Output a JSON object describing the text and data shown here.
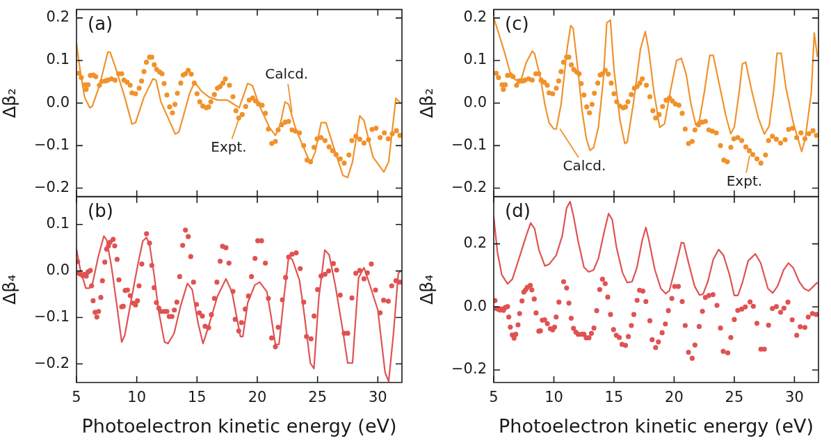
{
  "chart_data": [
    {
      "type": "line",
      "ylabel": "Δβ₂",
      "xlim": [
        5,
        32
      ],
      "ylim": [
        -0.22,
        0.22
      ],
      "xticks": [
        5,
        10,
        15,
        20,
        25,
        30
      ],
      "yticks": [
        {
          "value": -0.2,
          "label": "−0.2"
        },
        {
          "value": -0.1,
          "label": "−0.1"
        },
        {
          "value": 0,
          "label": "0.0"
        },
        {
          "value": 0.1,
          "label": "0.1"
        },
        {
          "value": 0.2,
          "label": "0.2"
        }
      ],
      "tick_labels": "y",
      "annotations": [
        "(a)",
        {
          "text": "Calcd.",
          "x": 22.9,
          "y": -0.027
        },
        {
          "text": "Expt.",
          "x": 18.5,
          "y": -0.035
        }
      ],
      "series": [
        {
          "type": "line",
          "color": "#f0922b",
          "marker": "none",
          "x": [
            5.0,
            5.3,
            5.67,
            6.1,
            6.3,
            6.9,
            7.6,
            7.8,
            8.3,
            9.0,
            9.6,
            9.9,
            10.6,
            11.35,
            11.6,
            12.0,
            13.2,
            13.5,
            14.4,
            14.8,
            15.4,
            16.0,
            16.7,
            17.5,
            17.9,
            18.5,
            19.2,
            19.6,
            20.2,
            21.0,
            21.5,
            21.9,
            22.3,
            22.6,
            23.2,
            23.85,
            24.4,
            24.8,
            25.3,
            25.7,
            26.35,
            27.1,
            27.5,
            27.9,
            28.5,
            28.85,
            29.6,
            30.5,
            30.9,
            31.5,
            31.9
          ],
          "values": [
            0.14,
            0.078,
            0.014,
            -0.011,
            -0.008,
            0.04,
            0.12,
            0.119,
            0.078,
            0.014,
            -0.049,
            -0.046,
            0.014,
            0.057,
            0.054,
            0.003,
            -0.073,
            -0.068,
            0.024,
            0.049,
            0.027,
            0.014,
            0.007,
            0.007,
            0,
            -0.011,
            0.046,
            0.041,
            -0.008,
            -0.057,
            -0.076,
            -0.051,
            0.003,
            -0.003,
            -0.062,
            -0.105,
            -0.141,
            -0.116,
            -0.046,
            -0.046,
            -0.105,
            -0.17,
            -0.175,
            -0.138,
            -0.03,
            -0.041,
            -0.127,
            -0.162,
            -0.138,
            0.011,
            0
          ]
        },
        {
          "type": "scatter",
          "color": "#f0922b",
          "marker": "circle",
          "x": [
            5.2,
            5.4,
            5.7,
            5.8,
            5.96,
            6.15,
            6.4,
            6.6,
            6.9,
            7.1,
            7.4,
            7.6,
            7.9,
            8.2,
            8.5,
            8.75,
            8.94,
            9.2,
            9.45,
            9.6,
            9.9,
            10.2,
            10.4,
            10.6,
            10.8,
            11.06,
            11.25,
            11.45,
            11.65,
            11.9,
            12.1,
            12.27,
            12.5,
            12.73,
            12.96,
            13.17,
            13.37,
            13.65,
            13.85,
            14.04,
            14.27,
            14.52,
            14.77,
            15.0,
            15.23,
            15.48,
            15.77,
            15.96,
            16.15,
            16.44,
            16.69,
            16.92,
            17.15,
            17.35,
            17.69,
            17.98,
            18.23,
            18.46,
            18.75,
            19.04,
            19.33,
            19.62,
            19.85,
            20.1,
            20.4,
            20.67,
            20.92,
            21.2,
            21.5,
            21.73,
            22.02,
            22.31,
            22.6,
            22.88,
            23.17,
            23.5,
            23.85,
            24.13,
            24.42,
            24.71,
            24.96,
            25.29,
            25.62,
            25.96,
            26.25,
            26.54,
            26.88,
            27.21,
            27.6,
            27.85,
            28.17,
            28.5,
            28.85,
            29.23,
            29.52,
            29.85,
            30.19,
            30.54,
            30.87,
            31.2,
            31.54,
            31.83
          ],
          "values": [
            0.07,
            0.06,
            0.043,
            0.032,
            0.043,
            0.065,
            0.066,
            0.062,
            0.042,
            0.051,
            0.052,
            0.054,
            0.057,
            0.054,
            0.069,
            0.069,
            0.054,
            0.049,
            0.042,
            0.024,
            0.022,
            0.035,
            0.052,
            0.074,
            0.096,
            0.108,
            0.108,
            0.09,
            0.079,
            0.073,
            0.069,
            0.046,
            0.019,
            -0.009,
            -0.023,
            -0.003,
            0.023,
            0.047,
            0.066,
            0.069,
            0.077,
            0.068,
            0.047,
            0.022,
            0.003,
            -0.007,
            -0.011,
            -0.009,
            0.003,
            0.02,
            0.035,
            0.039,
            0.047,
            0.057,
            0.042,
            0.015,
            -0.018,
            -0.035,
            -0.027,
            -0.008,
            0.007,
            0.012,
            0.005,
            -0.002,
            -0.005,
            -0.024,
            -0.061,
            -0.095,
            -0.09,
            -0.063,
            -0.051,
            -0.045,
            -0.043,
            -0.063,
            -0.066,
            -0.07,
            -0.1,
            -0.134,
            -0.138,
            -0.104,
            -0.084,
            -0.081,
            -0.088,
            -0.103,
            -0.112,
            -0.121,
            -0.131,
            -0.141,
            -0.122,
            -0.088,
            -0.078,
            -0.085,
            -0.094,
            -0.086,
            -0.062,
            -0.059,
            -0.081,
            -0.07,
            -0.084,
            -0.072,
            -0.065,
            -0.076
          ]
        }
      ]
    },
    {
      "type": "line",
      "xlabel": "Photoelectron kinetic energy (eV)",
      "ylabel": "Δβ₄",
      "xlim": [
        5,
        32
      ],
      "ylim": [
        -0.24,
        0.16
      ],
      "xticks": [
        5,
        10,
        15,
        20,
        25,
        30
      ],
      "yticks": [
        {
          "value": -0.2,
          "label": "−0.2"
        },
        {
          "value": -0.1,
          "label": "−0.1"
        },
        {
          "value": 0,
          "label": "0.0"
        },
        {
          "value": 0.1,
          "label": "0.1"
        }
      ],
      "annotations": [
        "(b)"
      ],
      "series": [
        {
          "type": "line",
          "color": "#e05252",
          "marker": "none",
          "x": [
            5.0,
            5.3,
            5.77,
            6.06,
            6.35,
            6.8,
            7.27,
            7.5,
            7.9,
            8.35,
            8.75,
            9.0,
            9.6,
            10.1,
            10.5,
            10.8,
            11.05,
            11.45,
            11.8,
            12.3,
            12.6,
            13.1,
            13.65,
            14.2,
            14.6,
            15.1,
            15.5,
            15.96,
            16.7,
            17.4,
            17.9,
            18.4,
            18.6,
            18.8,
            19.2,
            19.8,
            20.2,
            20.8,
            21.15,
            21.5,
            21.8,
            22.2,
            22.6,
            22.9,
            23.5,
            23.85,
            24.4,
            24.7,
            25.1,
            25.6,
            25.96,
            26.5,
            27.1,
            27.5,
            27.9,
            28.4,
            28.85,
            29.4,
            30.0,
            30.6,
            30.9,
            31.3,
            31.7,
            31.9
          ],
          "values": [
            0.047,
            0.005,
            -0.037,
            -0.037,
            -0.025,
            0.03,
            0.075,
            0.067,
            0.01,
            -0.074,
            -0.153,
            -0.139,
            -0.054,
            0.015,
            0.064,
            0.072,
            0.059,
            -0.01,
            -0.084,
            -0.153,
            -0.156,
            -0.134,
            -0.074,
            -0.027,
            -0.04,
            -0.114,
            -0.156,
            -0.119,
            -0.054,
            -0.017,
            -0.045,
            -0.114,
            -0.141,
            -0.141,
            -0.069,
            -0.03,
            -0.024,
            -0.045,
            -0.099,
            -0.158,
            -0.158,
            -0.059,
            0.03,
            0.025,
            -0.02,
            -0.084,
            -0.198,
            -0.21,
            -0.059,
            0.045,
            0.035,
            -0.035,
            -0.129,
            -0.198,
            -0.198,
            -0.015,
            0.007,
            -0.035,
            -0.084,
            -0.218,
            -0.238,
            -0.134,
            -0.005,
            0
          ]
        },
        {
          "type": "scatter",
          "color": "#e05252",
          "marker": "circle",
          "x": [
            5.1,
            5.2,
            5.35,
            5.52,
            5.67,
            5.81,
            5.96,
            6.15,
            6.25,
            6.38,
            6.54,
            6.69,
            6.83,
            7.02,
            7.15,
            7.35,
            7.5,
            7.65,
            7.79,
            8.04,
            8.17,
            8.37,
            8.52,
            8.75,
            8.88,
            9.04,
            9.23,
            9.46,
            9.71,
            9.9,
            10.06,
            10.19,
            10.42,
            10.81,
            11.06,
            11.25,
            11.44,
            11.63,
            11.83,
            12.02,
            12.31,
            12.5,
            12.69,
            12.92,
            13.12,
            13.33,
            13.56,
            13.81,
            14.04,
            14.27,
            14.48,
            14.71,
            14.96,
            15.19,
            15.44,
            15.67,
            15.96,
            16.19,
            16.44,
            16.65,
            16.92,
            17.12,
            17.4,
            17.65,
            17.98,
            18.17,
            18.46,
            18.69,
            19.0,
            19.27,
            19.52,
            19.81,
            20.04,
            20.35,
            20.67,
            20.92,
            21.19,
            21.5,
            21.73,
            22.08,
            22.35,
            22.6,
            22.88,
            23.23,
            23.56,
            23.85,
            24.08,
            24.46,
            24.71,
            25.0,
            25.29,
            25.62,
            25.92,
            26.31,
            26.58,
            26.88,
            27.21,
            27.5,
            27.85,
            28.17,
            28.5,
            28.85,
            29.13,
            29.46,
            29.81,
            30.19,
            30.48,
            30.87,
            31.15,
            31.5,
            31.83
          ],
          "values": [
            0.02,
            -0.005,
            -0.007,
            -0.01,
            -0.007,
            -0.011,
            -0.002,
            0.001,
            -0.032,
            -0.064,
            -0.089,
            -0.099,
            -0.087,
            -0.057,
            -0.021,
            0.019,
            0.047,
            0.054,
            0.062,
            0.068,
            0.054,
            0.025,
            -0.019,
            -0.077,
            -0.076,
            -0.042,
            -0.041,
            -0.053,
            -0.069,
            -0.073,
            -0.064,
            -0.032,
            0.015,
            0.08,
            0.06,
            0.012,
            -0.036,
            -0.068,
            -0.08,
            -0.087,
            -0.087,
            -0.087,
            -0.098,
            -0.098,
            -0.084,
            -0.067,
            -0.012,
            0.055,
            0.088,
            0.074,
            0.031,
            -0.024,
            -0.072,
            -0.09,
            -0.097,
            -0.119,
            -0.122,
            -0.094,
            -0.059,
            -0.024,
            0.021,
            0.053,
            0.05,
            0.017,
            -0.044,
            -0.104,
            -0.129,
            -0.111,
            -0.082,
            -0.054,
            -0.012,
            0.027,
            0.065,
            0.065,
            0.017,
            -0.059,
            -0.144,
            -0.163,
            -0.121,
            -0.062,
            -0.014,
            0.03,
            0.036,
            0.039,
            0.005,
            -0.067,
            -0.141,
            -0.146,
            -0.097,
            -0.04,
            -0.011,
            -0.007,
            0,
            0.016,
            0.002,
            -0.052,
            -0.134,
            -0.134,
            -0.058,
            -0.005,
            0.001,
            -0.017,
            -0.004,
            0.015,
            -0.041,
            -0.09,
            -0.063,
            -0.065,
            -0.032,
            -0.021,
            -0.024
          ]
        }
      ]
    },
    {
      "type": "line",
      "ylabel": "Δβ₂",
      "xlim": [
        5,
        32
      ],
      "ylim": [
        -0.22,
        0.22
      ],
      "xticks": [
        5,
        10,
        15,
        20,
        25,
        30
      ],
      "yticks": [
        {
          "value": -0.2,
          "label": "−0.2"
        },
        {
          "value": -0.1,
          "label": "−0.1"
        },
        {
          "value": 0,
          "label": "0.0"
        },
        {
          "value": 0.1,
          "label": "0.1"
        },
        {
          "value": 0.2,
          "label": "0.2"
        }
      ],
      "tick_labels": "y",
      "annotations": [
        "(c)",
        {
          "text": "Calcd.",
          "x": 10.4,
          "y": -0.056
        },
        {
          "text": "Expt.",
          "x": 26.3,
          "y": -0.12
        }
      ],
      "series": [
        {
          "type": "line",
          "color": "#f0922b",
          "marker": "none",
          "x": [
            5.0,
            5.4,
            5.87,
            6.35,
            6.8,
            7.3,
            7.7,
            8.2,
            8.4,
            8.9,
            9.25,
            9.6,
            10.0,
            10.2,
            10.6,
            11.1,
            11.4,
            11.6,
            12.0,
            12.35,
            12.7,
            13.0,
            13.3,
            13.7,
            14.1,
            14.4,
            14.7,
            15.0,
            15.5,
            15.9,
            16.1,
            16.6,
            17.2,
            17.6,
            17.9,
            18.3,
            18.8,
            19.2,
            19.7,
            20.2,
            20.6,
            21.0,
            21.4,
            21.8,
            22.1,
            22.5,
            22.96,
            23.25,
            23.7,
            24.3,
            24.7,
            25.0,
            25.4,
            25.67,
            25.95,
            26.4,
            27.0,
            27.5,
            27.9,
            28.3,
            28.55,
            28.9,
            29.3,
            29.9,
            30.3,
            30.6,
            30.9,
            31.4,
            31.65,
            31.9
          ],
          "values": [
            0.2,
            0.165,
            0.122,
            0.073,
            0.054,
            0.057,
            0.095,
            0.122,
            0.116,
            0.057,
            -0.003,
            -0.046,
            -0.061,
            -0.061,
            -0.003,
            0.127,
            0.182,
            0.176,
            0.078,
            -0.019,
            -0.084,
            -0.111,
            -0.105,
            -0.057,
            0.051,
            0.189,
            0.195,
            0.078,
            -0.041,
            -0.095,
            -0.092,
            -0.003,
            0.127,
            0.168,
            0.122,
            0.03,
            -0.057,
            -0.049,
            0.03,
            0.1,
            0.105,
            0.068,
            -0.003,
            -0.051,
            -0.041,
            0.024,
            0.112,
            0.112,
            0.051,
            -0.03,
            -0.072,
            -0.057,
            0.024,
            0.092,
            0.096,
            0.035,
            -0.035,
            -0.073,
            -0.054,
            0.035,
            0.117,
            0.117,
            0.035,
            -0.046,
            -0.084,
            -0.114,
            -0.084,
            0.024,
            0.165,
            0.11
          ]
        },
        {
          "type": "scatter",
          "color": "#f0922b",
          "marker": "circle",
          "x": [
            5.2,
            5.4,
            5.7,
            5.8,
            5.96,
            6.15,
            6.4,
            6.6,
            6.9,
            7.1,
            7.4,
            7.6,
            7.9,
            8.2,
            8.5,
            8.75,
            8.94,
            9.2,
            9.45,
            9.6,
            9.9,
            10.2,
            10.4,
            10.6,
            10.8,
            11.06,
            11.25,
            11.45,
            11.65,
            11.9,
            12.1,
            12.27,
            12.5,
            12.73,
            12.96,
            13.17,
            13.37,
            13.65,
            13.85,
            14.04,
            14.27,
            14.52,
            14.77,
            15.0,
            15.23,
            15.48,
            15.77,
            15.96,
            16.15,
            16.44,
            16.69,
            16.92,
            17.15,
            17.35,
            17.69,
            17.98,
            18.23,
            18.46,
            18.75,
            19.04,
            19.33,
            19.62,
            19.85,
            20.1,
            20.4,
            20.67,
            20.92,
            21.2,
            21.5,
            21.73,
            22.02,
            22.31,
            22.6,
            22.88,
            23.17,
            23.5,
            23.85,
            24.13,
            24.42,
            24.71,
            24.96,
            25.29,
            25.62,
            25.96,
            26.25,
            26.54,
            26.88,
            27.21,
            27.6,
            27.85,
            28.17,
            28.5,
            28.85,
            29.23,
            29.52,
            29.85,
            30.19,
            30.54,
            30.87,
            31.2,
            31.54,
            31.83
          ],
          "values": [
            0.07,
            0.06,
            0.043,
            0.032,
            0.043,
            0.065,
            0.066,
            0.062,
            0.042,
            0.051,
            0.052,
            0.054,
            0.057,
            0.054,
            0.069,
            0.069,
            0.054,
            0.049,
            0.042,
            0.024,
            0.022,
            0.035,
            0.052,
            0.074,
            0.096,
            0.108,
            0.108,
            0.09,
            0.079,
            0.073,
            0.069,
            0.046,
            0.019,
            -0.009,
            -0.023,
            -0.003,
            0.023,
            0.047,
            0.066,
            0.069,
            0.077,
            0.068,
            0.047,
            0.022,
            0.003,
            -0.007,
            -0.011,
            -0.009,
            0.003,
            0.02,
            0.035,
            0.039,
            0.047,
            0.057,
            0.042,
            0.015,
            -0.018,
            -0.035,
            -0.027,
            -0.008,
            0.007,
            0.012,
            0.005,
            -0.002,
            -0.005,
            -0.024,
            -0.061,
            -0.095,
            -0.09,
            -0.063,
            -0.051,
            -0.045,
            -0.043,
            -0.063,
            -0.066,
            -0.07,
            -0.1,
            -0.134,
            -0.138,
            -0.104,
            -0.084,
            -0.081,
            -0.088,
            -0.103,
            -0.112,
            -0.121,
            -0.131,
            -0.141,
            -0.122,
            -0.088,
            -0.078,
            -0.085,
            -0.094,
            -0.086,
            -0.062,
            -0.059,
            -0.081,
            -0.07,
            -0.084,
            -0.072,
            -0.065,
            -0.076
          ]
        }
      ]
    },
    {
      "type": "line",
      "xlabel": "Photoelectron kinetic energy (eV)",
      "ylabel": "Δβ₄",
      "xlim": [
        5,
        32
      ],
      "ylim": [
        -0.24,
        0.35
      ],
      "xticks": [
        5,
        10,
        15,
        20,
        25,
        30
      ],
      "yticks": [
        {
          "value": -0.2,
          "label": "−0.2"
        },
        {
          "value": 0,
          "label": "0.0"
        },
        {
          "value": 0.2,
          "label": "0.2"
        }
      ],
      "annotations": [
        "(d)"
      ],
      "series": [
        {
          "type": "line",
          "color": "#e05252",
          "marker": "none",
          "x": [
            5.0,
            5.3,
            5.67,
            6.15,
            6.55,
            7.1,
            7.7,
            8.07,
            8.4,
            8.75,
            9.25,
            9.6,
            10.2,
            10.7,
            11.06,
            11.35,
            11.65,
            12.0,
            12.5,
            12.9,
            13.3,
            13.7,
            14.2,
            14.55,
            14.85,
            15.2,
            15.7,
            16.1,
            16.5,
            16.9,
            17.35,
            17.65,
            17.9,
            18.4,
            18.9,
            19.3,
            19.6,
            20.1,
            20.6,
            20.8,
            21.2,
            21.7,
            22.1,
            22.4,
            22.8,
            23.25,
            23.7,
            24.1,
            24.6,
            25.0,
            25.3,
            25.7,
            26.15,
            26.75,
            27.2,
            27.8,
            28.2,
            28.6,
            29.1,
            29.5,
            29.9,
            30.4,
            30.8,
            31.2,
            31.9
          ],
          "values": [
            0.285,
            0.175,
            0.102,
            0.073,
            0.088,
            0.153,
            0.226,
            0.266,
            0.248,
            0.182,
            0.13,
            0.135,
            0.164,
            0.226,
            0.314,
            0.334,
            0.285,
            0.212,
            0.126,
            0.111,
            0.117,
            0.153,
            0.241,
            0.296,
            0.277,
            0.19,
            0.109,
            0.077,
            0.08,
            0.124,
            0.212,
            0.252,
            0.212,
            0.117,
            0.058,
            0.042,
            0.051,
            0.124,
            0.204,
            0.203,
            0.139,
            0.066,
            0.038,
            0.04,
            0.08,
            0.15,
            0.182,
            0.164,
            0.102,
            0.036,
            0.036,
            0.08,
            0.146,
            0.168,
            0.139,
            0.058,
            0.044,
            0.066,
            0.117,
            0.139,
            0.124,
            0.08,
            0.058,
            0.051,
            0.077
          ]
        },
        {
          "type": "scatter",
          "color": "#e05252",
          "marker": "circle",
          "x": [
            5.1,
            5.2,
            5.35,
            5.52,
            5.67,
            5.81,
            5.96,
            6.15,
            6.25,
            6.38,
            6.54,
            6.69,
            6.83,
            7.02,
            7.15,
            7.35,
            7.5,
            7.65,
            7.79,
            8.04,
            8.17,
            8.37,
            8.52,
            8.75,
            8.88,
            9.04,
            9.23,
            9.46,
            9.71,
            9.9,
            10.06,
            10.19,
            10.42,
            10.81,
            11.06,
            11.25,
            11.44,
            11.63,
            11.83,
            12.02,
            12.31,
            12.5,
            12.69,
            12.92,
            13.12,
            13.33,
            13.56,
            13.81,
            14.04,
            14.27,
            14.48,
            14.71,
            14.96,
            15.19,
            15.44,
            15.67,
            15.96,
            16.19,
            16.44,
            16.65,
            16.92,
            17.12,
            17.4,
            17.65,
            17.98,
            18.17,
            18.46,
            18.69,
            19.0,
            19.27,
            19.52,
            19.81,
            20.04,
            20.35,
            20.67,
            20.92,
            21.19,
            21.5,
            21.73,
            22.08,
            22.35,
            22.6,
            22.88,
            23.23,
            23.56,
            23.85,
            24.08,
            24.46,
            24.71,
            25.0,
            25.29,
            25.62,
            25.92,
            26.31,
            26.58,
            26.88,
            27.21,
            27.5,
            27.85,
            28.17,
            28.5,
            28.85,
            29.13,
            29.46,
            29.81,
            30.19,
            30.48,
            30.87,
            31.15,
            31.5,
            31.83
          ],
          "values": [
            0.02,
            -0.005,
            -0.007,
            -0.01,
            -0.007,
            -0.011,
            -0.002,
            0.001,
            -0.032,
            -0.064,
            -0.089,
            -0.099,
            -0.087,
            -0.057,
            -0.021,
            0.019,
            0.047,
            0.054,
            0.062,
            0.068,
            0.054,
            0.025,
            -0.019,
            -0.077,
            -0.076,
            -0.042,
            -0.041,
            -0.053,
            -0.069,
            -0.073,
            -0.064,
            -0.032,
            0.015,
            0.08,
            0.06,
            0.012,
            -0.036,
            -0.068,
            -0.08,
            -0.087,
            -0.087,
            -0.087,
            -0.098,
            -0.098,
            -0.084,
            -0.067,
            -0.012,
            0.055,
            0.088,
            0.074,
            0.031,
            -0.024,
            -0.072,
            -0.09,
            -0.097,
            -0.119,
            -0.122,
            -0.094,
            -0.059,
            -0.024,
            0.021,
            0.053,
            0.05,
            0.017,
            -0.044,
            -0.104,
            -0.129,
            -0.111,
            -0.082,
            -0.054,
            -0.012,
            0.027,
            0.065,
            0.065,
            0.017,
            -0.059,
            -0.144,
            -0.163,
            -0.121,
            -0.062,
            -0.014,
            0.03,
            0.036,
            0.039,
            0.005,
            -0.067,
            -0.141,
            -0.146,
            -0.097,
            -0.04,
            -0.011,
            -0.007,
            0,
            0.016,
            0.002,
            -0.052,
            -0.134,
            -0.134,
            -0.058,
            -0.005,
            0.001,
            -0.017,
            -0.004,
            0.015,
            -0.041,
            -0.09,
            -0.063,
            -0.065,
            -0.032,
            -0.021,
            -0.024
          ]
        }
      ]
    }
  ]
}
